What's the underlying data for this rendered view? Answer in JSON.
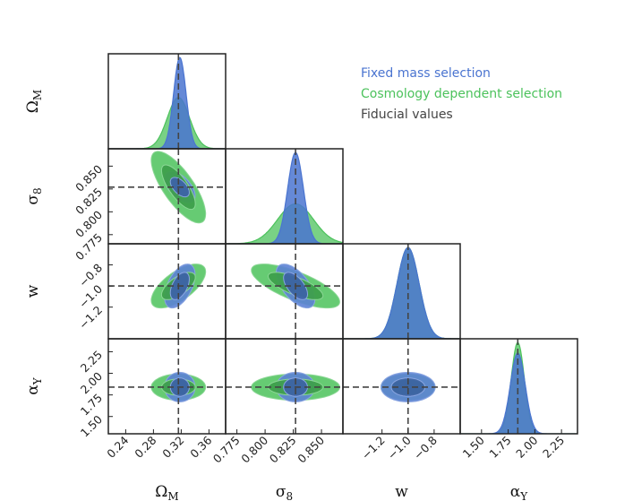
{
  "chart_data": {
    "type": "corner",
    "parameters": [
      {
        "key": "omega_m",
        "symbol": "Ω",
        "sub": "M",
        "ticks": [
          "0.24",
          "0.28",
          "0.32",
          "0.36"
        ],
        "tick_values": [
          0.24,
          0.28,
          0.32,
          0.36
        ],
        "range": [
          0.215,
          0.384
        ],
        "fiducial": 0.316
      },
      {
        "key": "sigma_8",
        "symbol": "σ",
        "sub": "8",
        "ticks": [
          "0.775",
          "0.800",
          "0.825",
          "0.850"
        ],
        "tick_values": [
          0.775,
          0.8,
          0.825,
          0.85
        ],
        "range": [
          0.765,
          0.869
        ],
        "fiducial": 0.827
      },
      {
        "key": "w",
        "symbol": "w",
        "sub": "",
        "ticks": [
          "−1.2",
          "−1.0",
          "−0.8"
        ],
        "tick_values": [
          -1.2,
          -1.0,
          -0.8
        ],
        "range": [
          -1.5,
          -0.6
        ],
        "fiducial": -1.0
      },
      {
        "key": "alpha_y",
        "symbol": "α",
        "sub": "Y",
        "ticks": [
          "1.50",
          "1.75",
          "2.00",
          "2.25"
        ],
        "tick_values": [
          1.5,
          1.75,
          2.0,
          2.25
        ],
        "range": [
          1.3,
          2.4
        ],
        "fiducial": 1.84
      }
    ],
    "series": [
      {
        "name": "Fixed mass selection",
        "color": "#4a74d0",
        "means": [
          0.318,
          0.827,
          -1.0,
          1.84
        ],
        "sigmas": [
          0.009,
          0.007,
          0.085,
          0.07
        ],
        "correlations": [
          [
            1,
            -0.55,
            0.5,
            0
          ],
          [
            -0.55,
            1,
            -0.6,
            0
          ],
          [
            0.5,
            -0.6,
            1,
            0
          ],
          [
            0,
            0,
            0,
            1
          ]
        ]
      },
      {
        "name": "Cosmology dependent selection",
        "color": "#4cc25c",
        "means": [
          0.316,
          0.827,
          -1.0,
          1.84
        ],
        "sigmas": [
          0.016,
          0.016,
          0.085,
          0.062
        ],
        "correlations": [
          [
            1,
            -0.75,
            0.65,
            0
          ],
          [
            -0.75,
            1,
            -0.72,
            0
          ],
          [
            0.65,
            -0.72,
            1,
            0
          ],
          [
            0,
            0,
            0,
            1
          ]
        ]
      }
    ],
    "fiducial_label": "Fiducial values",
    "fiducial_color": "#444444",
    "legend_position": "top-right"
  }
}
